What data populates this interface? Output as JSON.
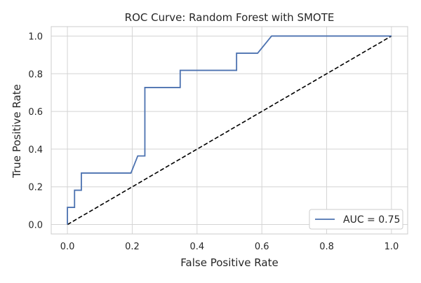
{
  "chart_data": {
    "type": "line",
    "title": "ROC Curve: Random Forest with SMOTE",
    "xlabel": "False Positive Rate",
    "ylabel": "True Positive Rate",
    "xlim": [
      -0.05,
      1.05
    ],
    "ylim": [
      -0.05,
      1.05
    ],
    "xticks": [
      0.0,
      0.2,
      0.4,
      0.6,
      0.8,
      1.0
    ],
    "yticks": [
      0.0,
      0.2,
      0.4,
      0.6,
      0.8,
      1.0
    ],
    "xtick_labels": [
      "0.0",
      "0.2",
      "0.4",
      "0.6",
      "0.8",
      "1.0"
    ],
    "ytick_labels": [
      "0.0",
      "0.2",
      "0.4",
      "0.6",
      "0.8",
      "1.0"
    ],
    "grid": true,
    "legend_position": "lower-right",
    "series": [
      {
        "name": "AUC = 0.75",
        "style": "solid",
        "color": "#4c72b0",
        "x": [
          0.0,
          0.0,
          0.022,
          0.022,
          0.043,
          0.043,
          0.196,
          0.217,
          0.239,
          0.239,
          0.348,
          0.348,
          0.522,
          0.522,
          0.587,
          0.63,
          1.0
        ],
        "y": [
          0.0,
          0.091,
          0.091,
          0.182,
          0.182,
          0.273,
          0.273,
          0.364,
          0.364,
          0.727,
          0.727,
          0.818,
          0.818,
          0.909,
          0.909,
          1.0,
          1.0
        ]
      },
      {
        "style": "dashed",
        "color": "#000000",
        "x": [
          0.0,
          1.0
        ],
        "y": [
          0.0,
          1.0
        ]
      }
    ]
  }
}
